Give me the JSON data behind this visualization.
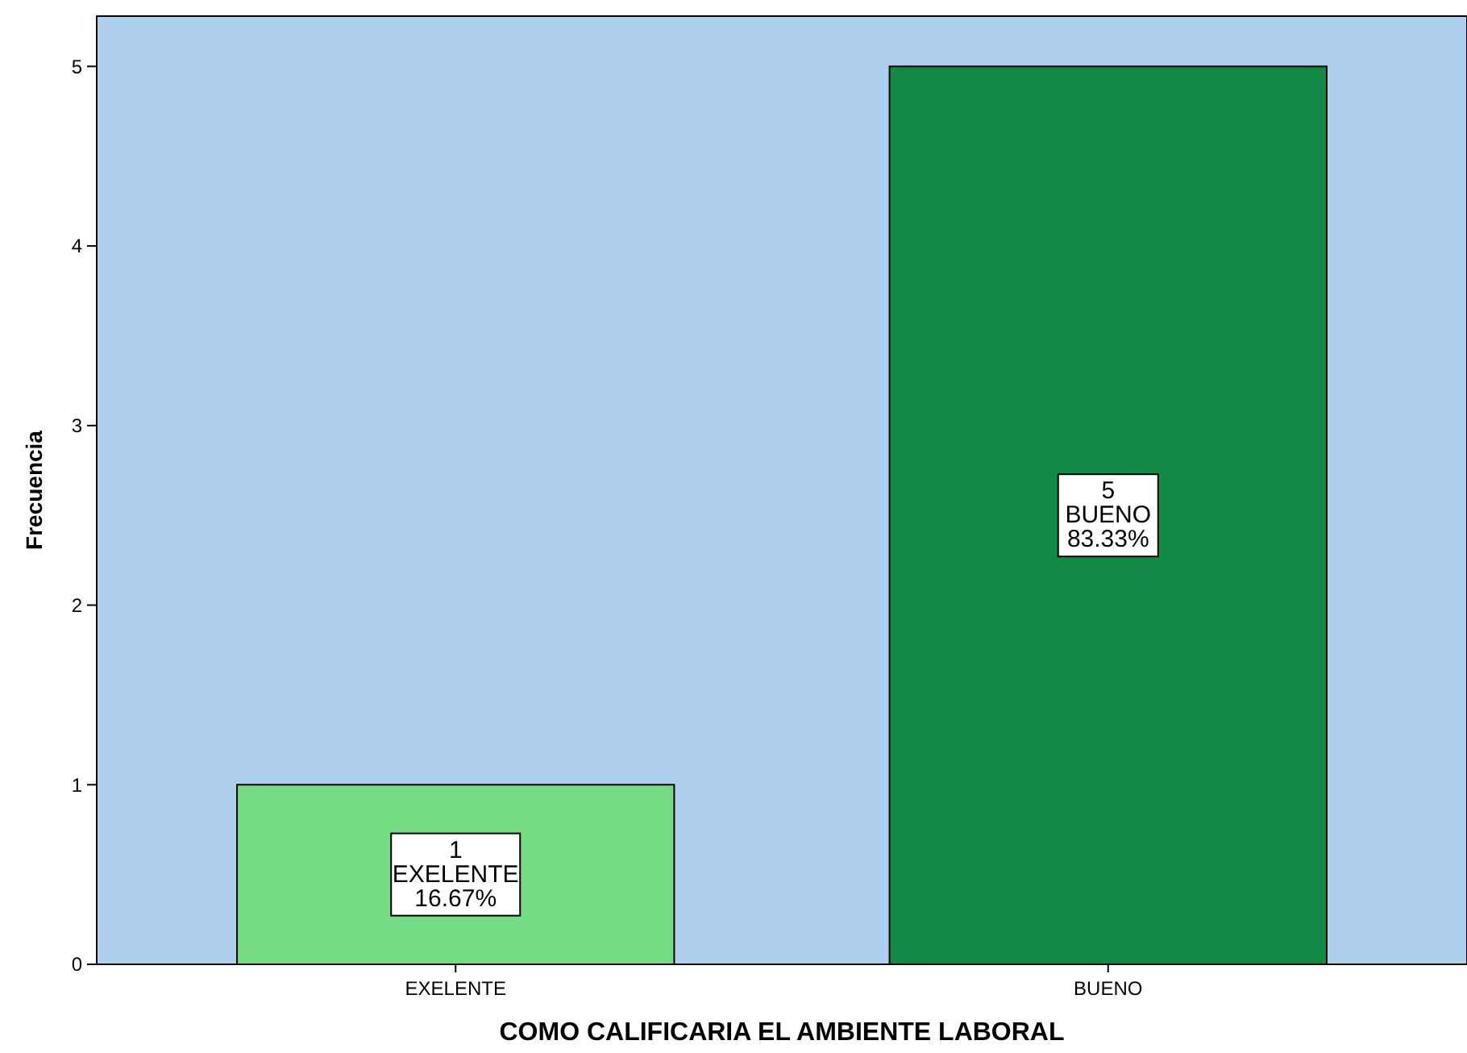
{
  "chart_data": {
    "type": "bar",
    "xlabel": "COMO CALIFICARIA EL AMBIENTE LABORAL",
    "ylabel": "Frecuencia",
    "categories": [
      "EXELENTE",
      "BUENO"
    ],
    "values": [
      1,
      5
    ],
    "colors": [
      "#74dc84",
      "#128a45"
    ],
    "value_labels": [
      "1\nEXELENTE\n16.67%",
      "5\nBUENO\n83.33%"
    ],
    "ylim": [
      0,
      5.28
    ],
    "yticks": [
      0,
      1,
      2,
      3,
      4,
      5
    ]
  }
}
